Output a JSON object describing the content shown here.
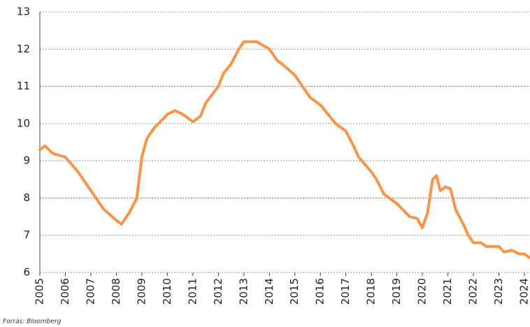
{
  "chart_data": {
    "type": "line",
    "x": [
      2005.0,
      2005.2,
      2005.5,
      2006.0,
      2006.5,
      2007.0,
      2007.2,
      2007.5,
      2008.0,
      2008.2,
      2008.5,
      2008.8,
      2009.0,
      2009.2,
      2009.5,
      2009.8,
      2010.0,
      2010.3,
      2010.6,
      2011.0,
      2011.3,
      2011.5,
      2012.0,
      2012.2,
      2012.5,
      2012.8,
      2013.0,
      2013.5,
      2014.0,
      2014.3,
      2014.5,
      2015.0,
      2015.3,
      2015.6,
      2016.0,
      2016.3,
      2016.6,
      2017.0,
      2017.3,
      2017.5,
      2018.0,
      2018.2,
      2018.5,
      2019.0,
      2019.5,
      2019.8,
      2020.0,
      2020.2,
      2020.4,
      2020.55,
      2020.7,
      2020.9,
      2021.1,
      2021.3,
      2021.6,
      2021.8,
      2022.0,
      2022.3,
      2022.5,
      2023.0,
      2023.2,
      2023.5,
      2023.8,
      2024.0,
      2024.2
    ],
    "series": [
      {
        "color": "#f9944a",
        "values": [
          9.3,
          9.4,
          9.2,
          9.1,
          8.7,
          8.2,
          8.0,
          7.7,
          7.4,
          7.3,
          7.6,
          8.0,
          9.1,
          9.6,
          9.9,
          10.1,
          10.25,
          10.35,
          10.25,
          10.05,
          10.2,
          10.55,
          11.0,
          11.35,
          11.6,
          12.0,
          12.2,
          12.2,
          12.0,
          11.7,
          11.6,
          11.3,
          11.0,
          10.7,
          10.5,
          10.25,
          10.0,
          9.8,
          9.4,
          9.1,
          8.7,
          8.5,
          8.1,
          7.85,
          7.5,
          7.45,
          7.2,
          7.6,
          8.5,
          8.6,
          8.2,
          8.3,
          8.25,
          7.7,
          7.3,
          7.0,
          6.8,
          6.8,
          6.7,
          6.7,
          6.55,
          6.6,
          6.5,
          6.5,
          6.4
        ]
      }
    ],
    "xlim": [
      2005,
      2024.22
    ],
    "xticks": [
      2005,
      2006,
      2007,
      2008,
      2009,
      2010,
      2011,
      2012,
      2013,
      2014,
      2015,
      2016,
      2017,
      2018,
      2019,
      2020,
      2021,
      2022,
      2023,
      2024
    ],
    "ylim": [
      6,
      13
    ],
    "yticks": [
      6,
      7,
      8,
      9,
      10,
      11,
      12,
      13
    ],
    "grid": true,
    "source": "Forrás: Bloomberg"
  }
}
